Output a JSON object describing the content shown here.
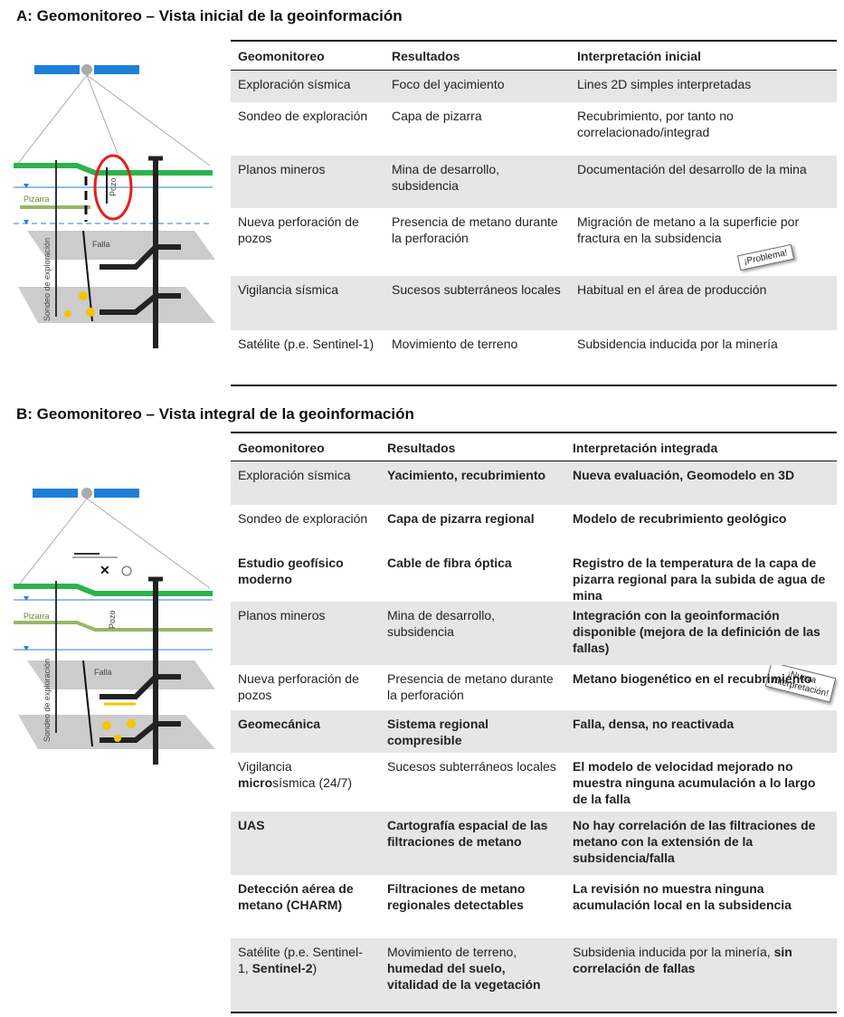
{
  "section_a": {
    "title": "A: Geomonitoreo – Vista inicial de la geoinformación",
    "diagram": {
      "pizarra": "Pizarra",
      "pozo": "Pozo",
      "falla": "Falla",
      "sondeo": "Sondeo de exploración"
    },
    "stamp": "¡Problema!",
    "table": {
      "header": [
        "Geomonitoreo",
        "Resultados",
        "Interpretación inicial"
      ],
      "rows": [
        [
          "Exploración sísmica",
          "Foco del yacimiento",
          "Lines 2D simples interpretadas"
        ],
        [
          "Sondeo de exploración",
          "Capa de pizarra",
          "Recubrimiento, por tanto no correlacionado/integrad"
        ],
        [
          "Planos mineros",
          "Mina de desarrollo, subsidencia",
          "Documentación del desarrollo de la mina"
        ],
        [
          "Nueva perforación de pozos",
          "Presencia de metano durante la perforación",
          "Migración de metano a la superficie por fractura en la subsidencia"
        ],
        [
          "Vigilancia sísmica",
          "Sucesos subterráneos locales",
          "Habitual en el área de producción"
        ],
        [
          "Satélite (p.e. Sentinel-1)",
          "Movimiento de terreno",
          "Subsidencia inducida por la minería"
        ]
      ]
    }
  },
  "section_b": {
    "title": "B: Geomonitoreo – Vista integral de la geoinformación",
    "diagram": {
      "pizarra": "Pizarra",
      "pozo": "Pozo",
      "falla": "Falla",
      "sondeo": "Sondeo de exploración"
    },
    "stamp": "¡Nueva Interpretación!",
    "table": {
      "header": [
        "Geomonitoreo",
        "Resultados",
        "Interpretación integrada"
      ],
      "rows": [
        [
          "Exploración sísmica",
          {
            "bold": "Yacimiento, recubrimiento"
          },
          {
            "bold": "Nueva evaluación, Geomodelo en 3D"
          }
        ],
        [
          "Sondeo de exploración",
          {
            "bold": "Capa de pizarra regional"
          },
          {
            "bold": "Modelo de recubrimiento  geológico"
          }
        ],
        [
          {
            "bold": "Estudio geofísico moderno"
          },
          {
            "bold": "Cable de fibra óptica"
          },
          {
            "bold": "Registro de la temperatura de la capa de pizarra regional para la subida de agua de mina"
          }
        ],
        [
          "Planos mineros",
          "Mina de desarrollo, subsidencia",
          {
            "bold": "Integración con la geoinformación disponible (mejora de la definición de las fallas)"
          }
        ],
        [
          "Nueva perforación de pozos",
          "Presencia de metano durante la perforación",
          {
            "bold": "Metano biogenético en el recubrimiento"
          }
        ],
        [
          {
            "bold": "Geomecánica"
          },
          {
            "bold": "Sistema regional compresible"
          },
          {
            "bold": "Falla, densa, no reactivada"
          }
        ],
        [
          [
            "Vigilancia ",
            {
              "bold": "micro"
            },
            "sísmica (24/7)"
          ],
          "Sucesos subterráneos locales",
          {
            "bold": "El modelo de velocidad mejorado no muestra ninguna acumulación a lo largo de la falla"
          }
        ],
        [
          {
            "bold": "UAS"
          },
          {
            "bold": "Cartografía espacial de las filtraciones de metano"
          },
          {
            "bold": "No hay correlación de las filtraciones de metano con la extensión de la subsidencia/falla"
          }
        ],
        [
          {
            "bold": "Detección aérea de metano (CHARM)"
          },
          {
            "bold": "Filtraciones de metano regionales detectables"
          },
          {
            "bold": "La revisión no muestra ninguna acumulación local en la subsidencia"
          }
        ],
        [
          [
            "Satélite (p.e. Sentinel-1, ",
            {
              "bold": "Sentinel-2"
            },
            ")"
          ],
          [
            "Movimiento de terreno, ",
            {
              "bold": "humedad del suelo, vitalidad de la vegetación"
            }
          ],
          [
            "Subsidenia inducida por la minería, ",
            {
              "bold": "sin correlación de fallas"
            }
          ]
        ]
      ]
    }
  }
}
